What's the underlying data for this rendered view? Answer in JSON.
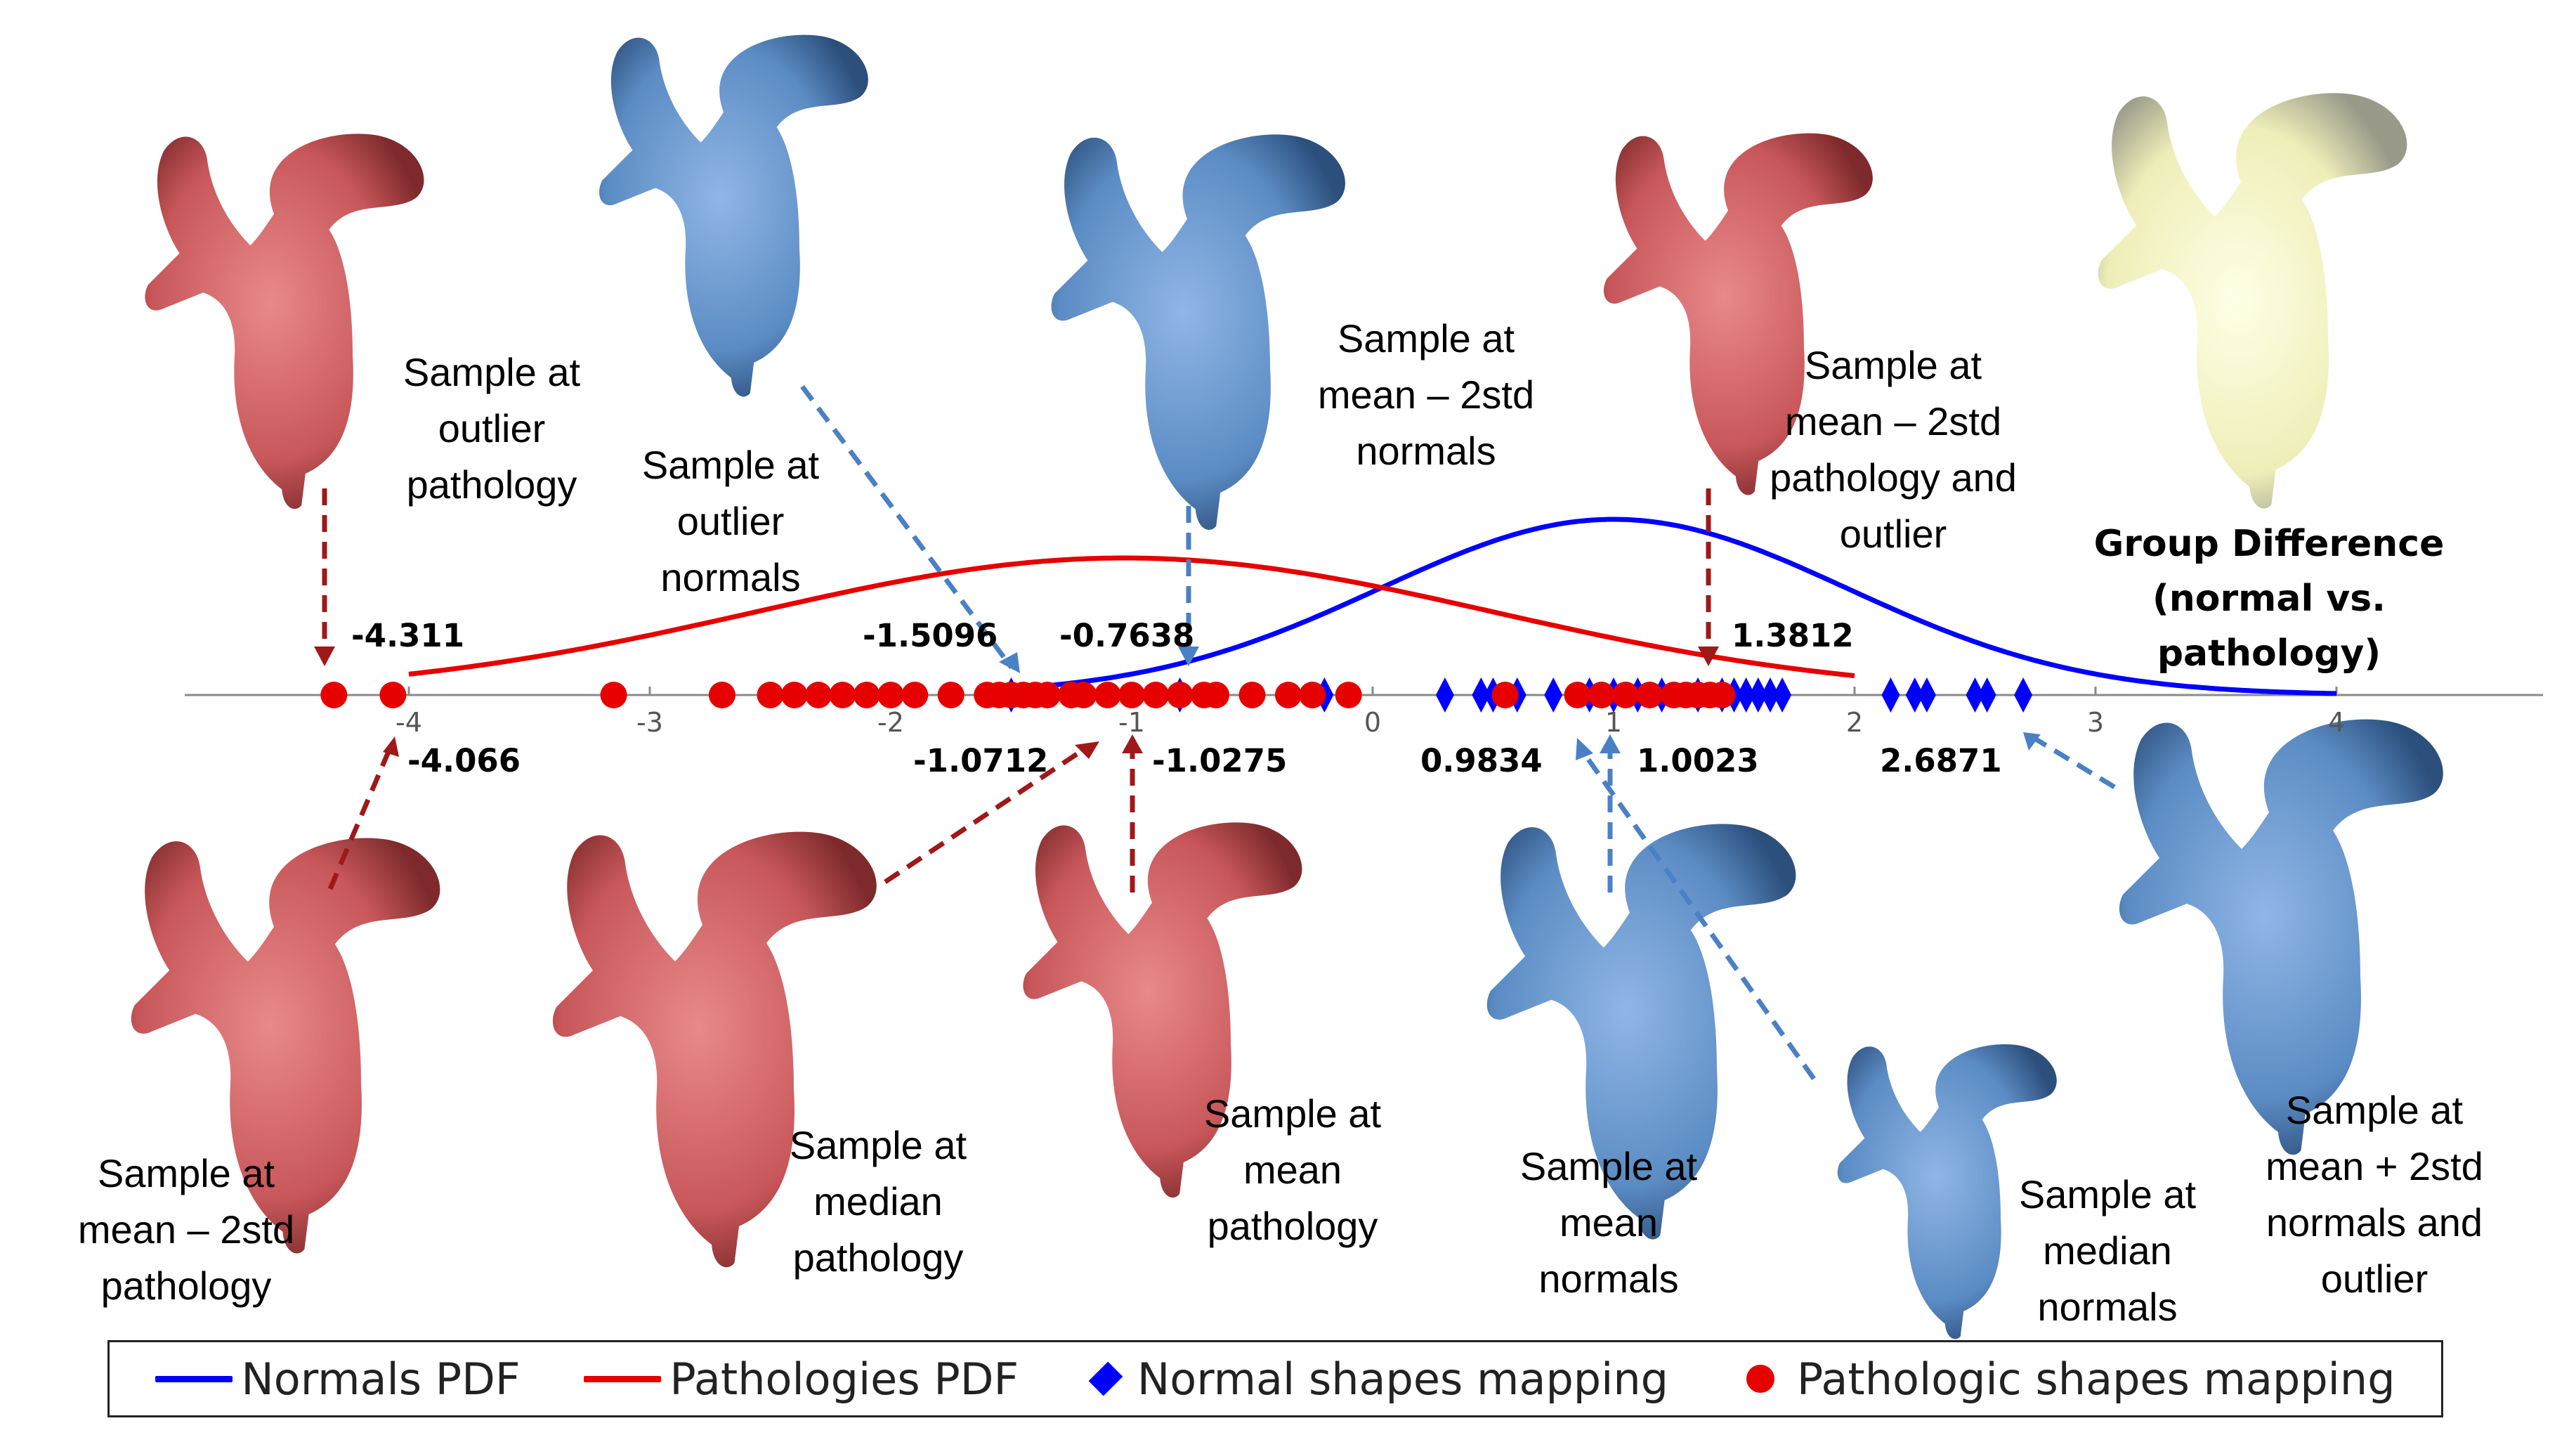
{
  "colors": {
    "normal": "#0000ff",
    "pathology": "#e60000",
    "normal_shape": "#5b8cc4",
    "path_shape": "#c8575a",
    "arrow_red": "#a01818",
    "arrow_blue": "#4a80c4"
  },
  "chart_data": {
    "type": "line",
    "xlim": [
      -4.9,
      5.8
    ],
    "xticks": [
      "-4",
      "-3",
      "-2",
      "-1",
      "0",
      "1",
      "2",
      "3",
      "4"
    ],
    "grid": false,
    "legend_placement": "bottom",
    "series": [
      {
        "name": "Normals PDF",
        "type": "line",
        "mean": 1.0,
        "std": 0.97,
        "range": [
          -1.45,
          4.0
        ],
        "peak_rel_height": 1.0
      },
      {
        "name": "Pathologies PDF",
        "type": "line",
        "mean": -1.03,
        "std": 1.53,
        "range": [
          -4.0,
          2.0
        ],
        "peak_rel_height": 0.78
      },
      {
        "name": "Normal shapes mapping",
        "type": "scatter",
        "marker": "diamond",
        "x": [
          -1.5,
          -0.8,
          -0.2,
          0.3,
          0.45,
          0.5,
          0.6,
          0.75,
          0.9,
          1.0,
          1.1,
          1.2,
          1.35,
          1.45,
          1.5,
          1.55,
          1.6,
          1.65,
          1.7,
          2.15,
          2.25,
          2.3,
          2.5,
          2.55,
          2.7
        ]
      },
      {
        "name": "Pathologic shapes mapping",
        "type": "scatter",
        "marker": "circle",
        "x": [
          -4.311,
          -4.066,
          -3.15,
          -2.7,
          -2.5,
          -2.4,
          -2.3,
          -2.2,
          -2.1,
          -2.0,
          -1.9,
          -1.75,
          -1.6,
          -1.55,
          -1.5,
          -1.45,
          -1.4,
          -1.35,
          -1.25,
          -1.2,
          -1.1,
          -1.0,
          -0.9,
          -0.8,
          -0.7,
          -0.65,
          -0.5,
          -0.35,
          -0.25,
          -0.1,
          0.55,
          0.85,
          0.95,
          1.05,
          1.15,
          1.25,
          1.3,
          1.35,
          1.4,
          1.45
        ]
      }
    ],
    "annotations": [
      "-4.311",
      "-4.066",
      "-1.5096",
      "-0.7638",
      "-1.0712",
      "-1.0275",
      "0.9834",
      "1.0023",
      "1.3812",
      "2.6871"
    ]
  },
  "labels": {
    "outlier_pathology": "Sample at\noutlier\npathology",
    "outlier_normals": "Sample at\noutlier\nnormals",
    "mean_minus_normals": "Sample at\nmean – 2std\nnormals",
    "mean_minus_path_outlier": "Sample at\nmean – 2std\npathology and\noutlier",
    "mean_minus_pathology": "Sample at\nmean – 2std\npathology",
    "median_pathology": "Sample at\nmedian\npathology",
    "mean_pathology": "Sample at\nmean\npathology",
    "mean_normals": "Sample at\nmean\nnormals",
    "median_normals": "Sample at\nmedian\nnormals",
    "mean_plus_normals_outlier": "Sample at\nmean + 2std\nnormals and\noutlier"
  },
  "group_difference": {
    "title": "Group Difference",
    "subtitle": "(normal vs. pathology)"
  },
  "legend": [
    {
      "key": "normals_pdf",
      "label": "Normals PDF"
    },
    {
      "key": "path_pdf",
      "label": "Pathologies PDF"
    },
    {
      "key": "normal_shapes",
      "label": "Normal shapes mapping"
    },
    {
      "key": "path_shapes",
      "label": "Pathologic shapes mapping"
    }
  ]
}
